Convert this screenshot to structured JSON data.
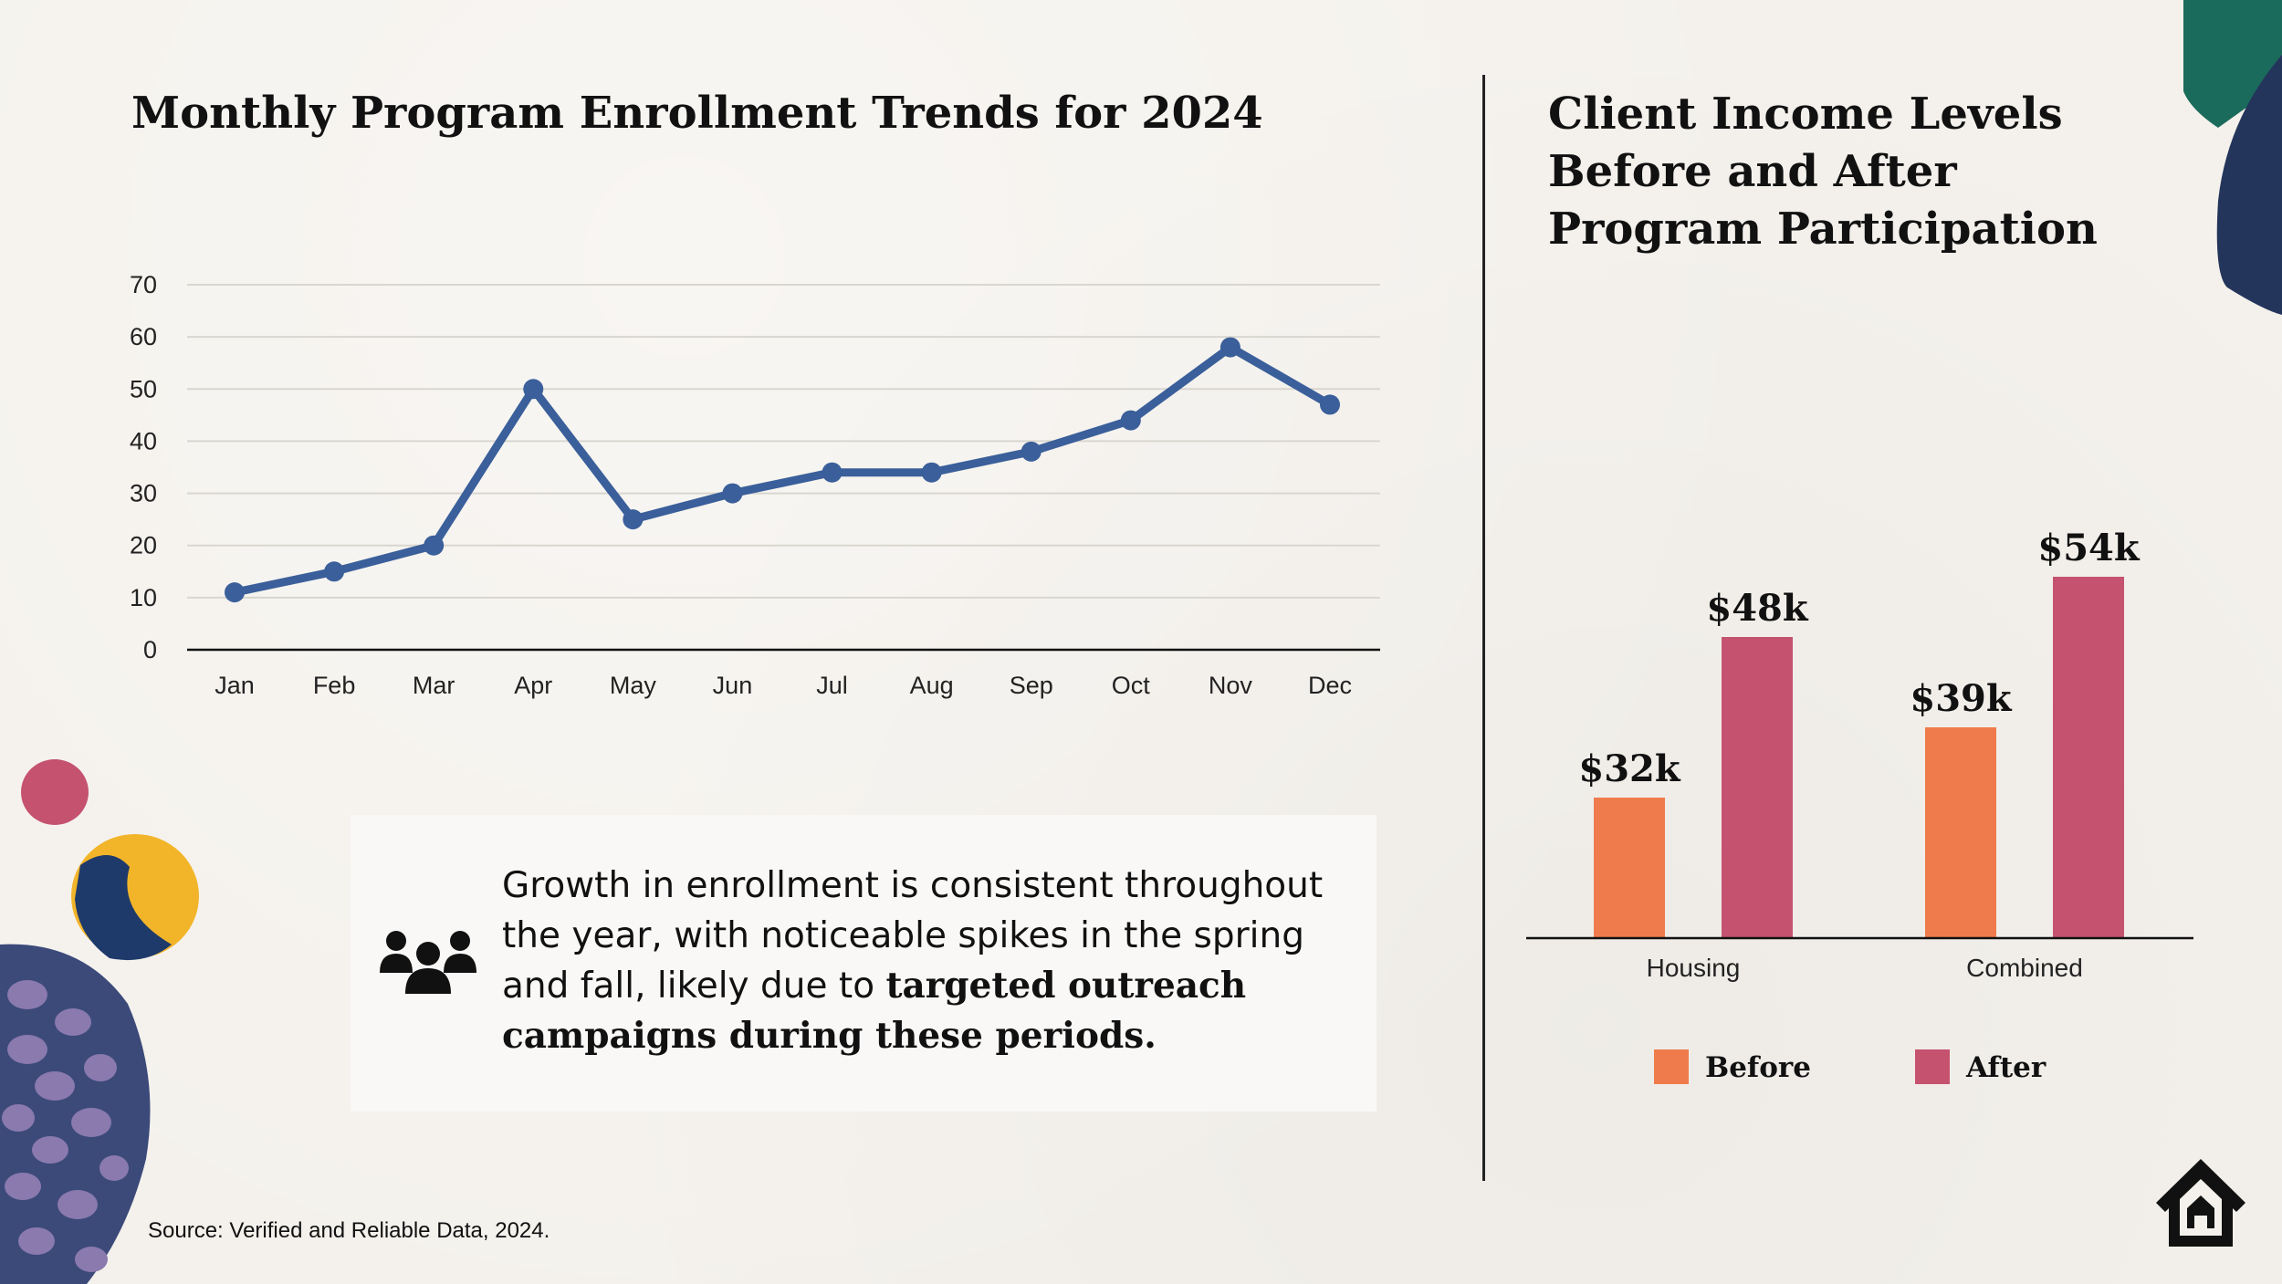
{
  "line_section": {
    "title": "Monthly Program Enrollment Trends for 2024"
  },
  "bar_section": {
    "title_lines": [
      "Client Income Levels",
      "Before and After",
      "Program Participation"
    ]
  },
  "callout": {
    "text_plain": "Growth in enrollment is consistent throughout the year, with noticeable spikes in the spring and fall, likely due to ",
    "text_bold": "targeted outreach campaigns during these periods.",
    "icon": "people-group-icon"
  },
  "source": "Source: Verified and Reliable Data, 2024.",
  "colors": {
    "line": "#3a5f9a",
    "before": "#ef7b4c",
    "after": "#c5526e"
  },
  "chart_data": [
    {
      "type": "line",
      "title": "Monthly Program Enrollment Trends for 2024",
      "x": [
        "Jan",
        "Feb",
        "Mar",
        "Apr",
        "May",
        "Jun",
        "Jul",
        "Aug",
        "Sep",
        "Oct",
        "Nov",
        "Dec"
      ],
      "series": [
        {
          "values": [
            11,
            15,
            20,
            50,
            25,
            30,
            34,
            34,
            38,
            44,
            58,
            47
          ]
        }
      ],
      "yticks": [
        0,
        10,
        20,
        30,
        40,
        50,
        60,
        70
      ],
      "ylim": [
        0,
        70
      ],
      "grid": true,
      "xlabel": "",
      "ylabel": ""
    },
    {
      "type": "bar",
      "title": "Client Income Levels Before and After Program Participation",
      "categories": [
        "Housing",
        "Combined"
      ],
      "series": [
        {
          "name": "Before",
          "values": [
            32,
            39
          ],
          "labels": [
            "$32k",
            "$39k"
          ]
        },
        {
          "name": "After",
          "values": [
            48,
            54
          ],
          "labels": [
            "$48k",
            "$54k"
          ]
        }
      ],
      "unit": "$k",
      "legend": "bottom"
    }
  ]
}
